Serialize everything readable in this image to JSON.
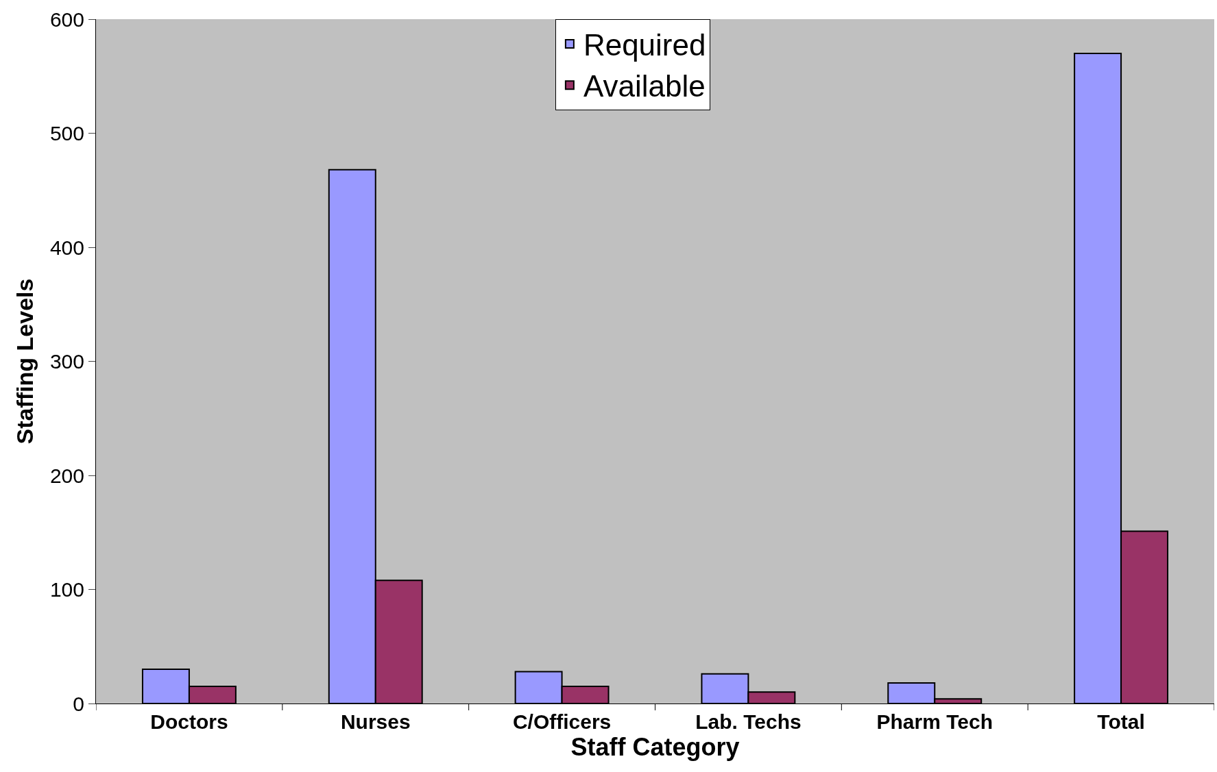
{
  "chart_data": {
    "type": "bar",
    "xlabel": "Staff Category",
    "ylabel": "Staffing Levels",
    "categories": [
      "Doctors",
      "Nurses",
      "C/Officers",
      "Lab. Techs",
      "Pharm Tech",
      "Total"
    ],
    "series": [
      {
        "name": "Required",
        "color": "#9999ff",
        "values": [
          30,
          468,
          28,
          26,
          18,
          570
        ]
      },
      {
        "name": "Available",
        "color": "#993366",
        "values": [
          15,
          108,
          15,
          10,
          4,
          151
        ]
      }
    ],
    "ylim": [
      0,
      600
    ],
    "yticks": [
      0,
      100,
      200,
      300,
      400,
      500,
      600
    ],
    "grid": false,
    "legend": "top"
  }
}
